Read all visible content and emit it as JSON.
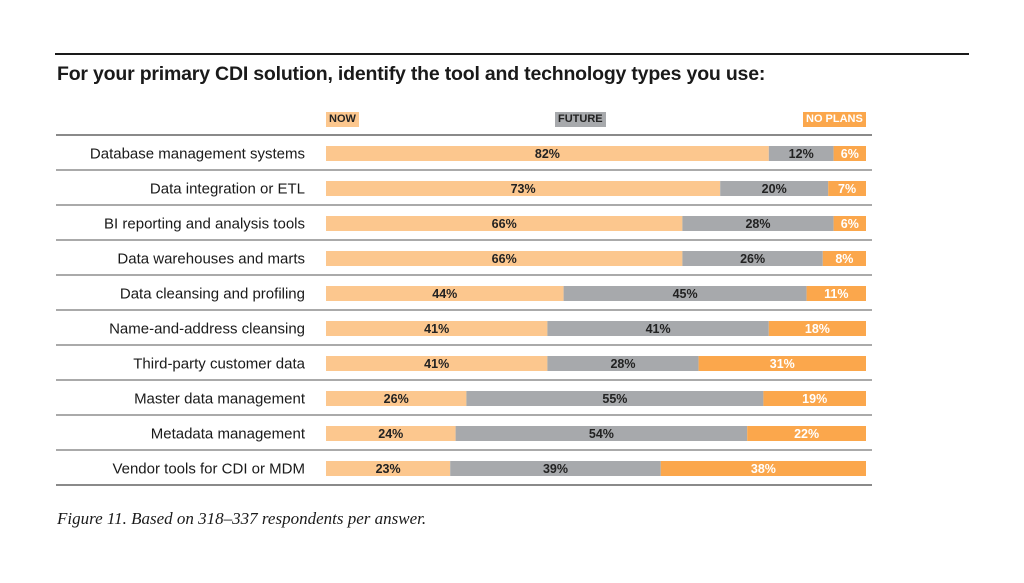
{
  "chart_data": {
    "type": "bar",
    "orientation": "horizontal",
    "stacked": true,
    "title": "For your primary CDI solution, identify the tool and technology types you use:",
    "caption": "Figure 11. Based on 318–337 respondents per answer.",
    "xlim": [
      0,
      100
    ],
    "legend_position": "top",
    "categories": [
      "Database management systems",
      "Data integration or ETL",
      "BI reporting and analysis tools",
      "Data warehouses and marts",
      "Data cleansing and profiling",
      "Name-and-address cleansing",
      "Third-party customer data",
      "Master data management",
      "Metadata management",
      "Vendor tools for CDI or MDM"
    ],
    "series": [
      {
        "name": "NOW",
        "color": "#fcc78e",
        "label_color": "#222222",
        "values": [
          82,
          73,
          66,
          66,
          44,
          41,
          41,
          26,
          24,
          23
        ]
      },
      {
        "name": "FUTURE",
        "color": "#a7a9ac",
        "label_color": "#222222",
        "values": [
          12,
          20,
          28,
          26,
          45,
          41,
          28,
          55,
          54,
          39
        ]
      },
      {
        "name": "NO PLANS",
        "color": "#fba74c",
        "label_color": "#ffffff",
        "values": [
          6,
          7,
          6,
          8,
          11,
          18,
          31,
          19,
          22,
          38
        ]
      }
    ]
  }
}
